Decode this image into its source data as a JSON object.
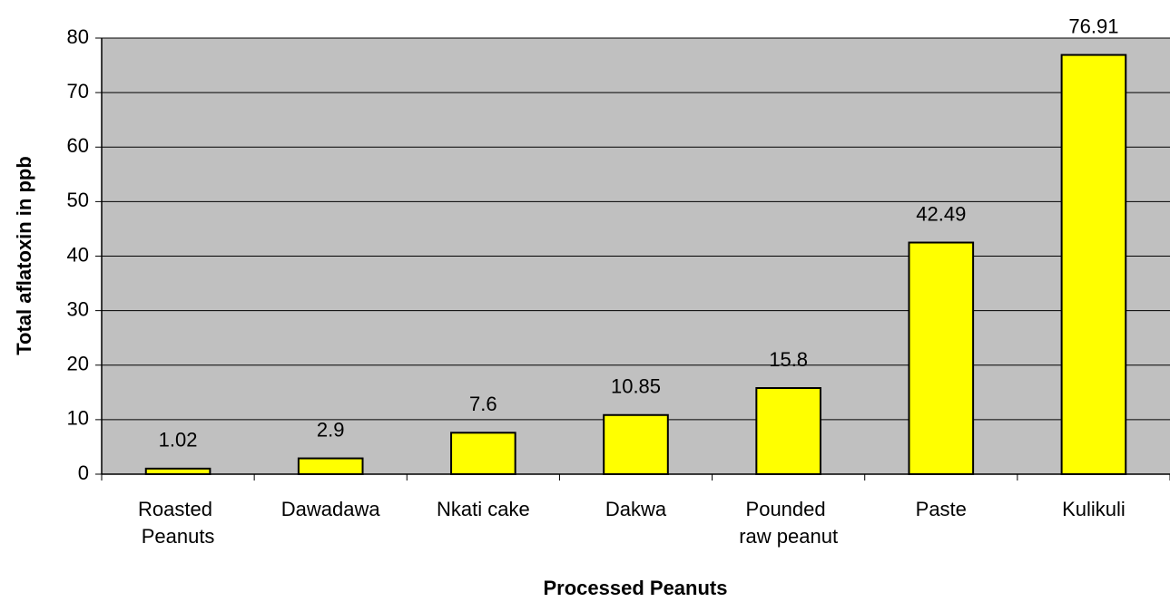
{
  "chart_data": {
    "type": "bar",
    "x_label": "Processed Peanuts",
    "y_label": "Total aflatoxin in ppb",
    "categories": [
      "Roasted Peanuts",
      "Dawadawa",
      "Nkati cake",
      "Dakwa",
      "Pounded raw peanut",
      "Paste",
      "Kulikuli"
    ],
    "values": [
      1.02,
      2.9,
      7.6,
      10.85,
      15.8,
      42.49,
      76.91
    ],
    "color": "#ffff00",
    "background": "#c0c0c0",
    "ylim": [
      0,
      80
    ],
    "yticks": [
      0,
      10,
      20,
      30,
      40,
      50,
      60,
      70,
      80
    ],
    "grid": true
  }
}
